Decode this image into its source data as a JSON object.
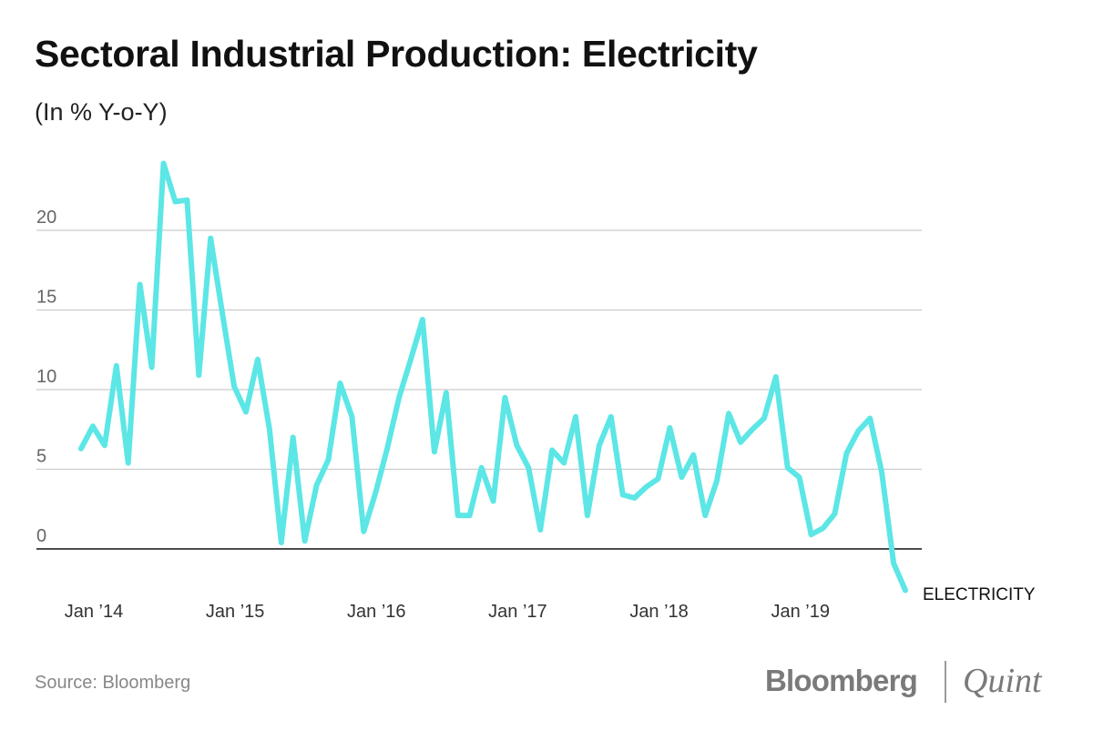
{
  "header": {
    "title": "Sectoral Industrial Production: Electricity",
    "subtitle": "(In % Y-o-Y)"
  },
  "footer": {
    "source": "Source: Bloomberg",
    "logo_left": "Bloomberg",
    "logo_right": "Quint"
  },
  "colors": {
    "line": "#5ce6e6",
    "gridline": "#cccccc",
    "zero_line": "#111111"
  },
  "chart_data": {
    "type": "line",
    "title": "Sectoral Industrial Production: Electricity",
    "subtitle": "(In % Y-o-Y)",
    "xlabel": "",
    "ylabel": "",
    "ylim": [
      -2.8,
      24.5
    ],
    "grid": true,
    "y_ticks": [
      0,
      5,
      10,
      15,
      20
    ],
    "x_ticks": [
      {
        "index": 0,
        "label": "Jan ’14"
      },
      {
        "index": 12,
        "label": "Jan ’15"
      },
      {
        "index": 24,
        "label": "Jan ’16"
      },
      {
        "index": 36,
        "label": "Jan ’17"
      },
      {
        "index": 48,
        "label": "Jan ’18"
      },
      {
        "index": 60,
        "label": "Jan ’19"
      }
    ],
    "x_start": "Jan 2014",
    "x_frequency": "monthly",
    "series": [
      {
        "name": "ELECTRICITY",
        "values": [
          6.3,
          7.7,
          6.5,
          11.5,
          5.4,
          16.6,
          11.4,
          24.2,
          21.8,
          21.9,
          10.9,
          19.5,
          14.8,
          10.2,
          8.6,
          11.9,
          7.5,
          0.4,
          7.0,
          0.5,
          4.0,
          5.6,
          10.4,
          8.3,
          1.1,
          3.5,
          6.3,
          9.5,
          11.9,
          14.4,
          6.1,
          9.8,
          2.1,
          2.1,
          5.1,
          3.0,
          9.5,
          6.5,
          5.1,
          1.2,
          6.2,
          5.4,
          8.3,
          2.1,
          6.5,
          8.3,
          3.4,
          3.2,
          3.9,
          4.4,
          7.6,
          4.5,
          5.9,
          2.1,
          4.3,
          8.5,
          6.7,
          7.5,
          8.2,
          10.8,
          5.1,
          4.5,
          0.9,
          1.3,
          2.2,
          6.0,
          7.4,
          8.2,
          4.8,
          -0.9,
          -2.6
        ]
      }
    ]
  }
}
